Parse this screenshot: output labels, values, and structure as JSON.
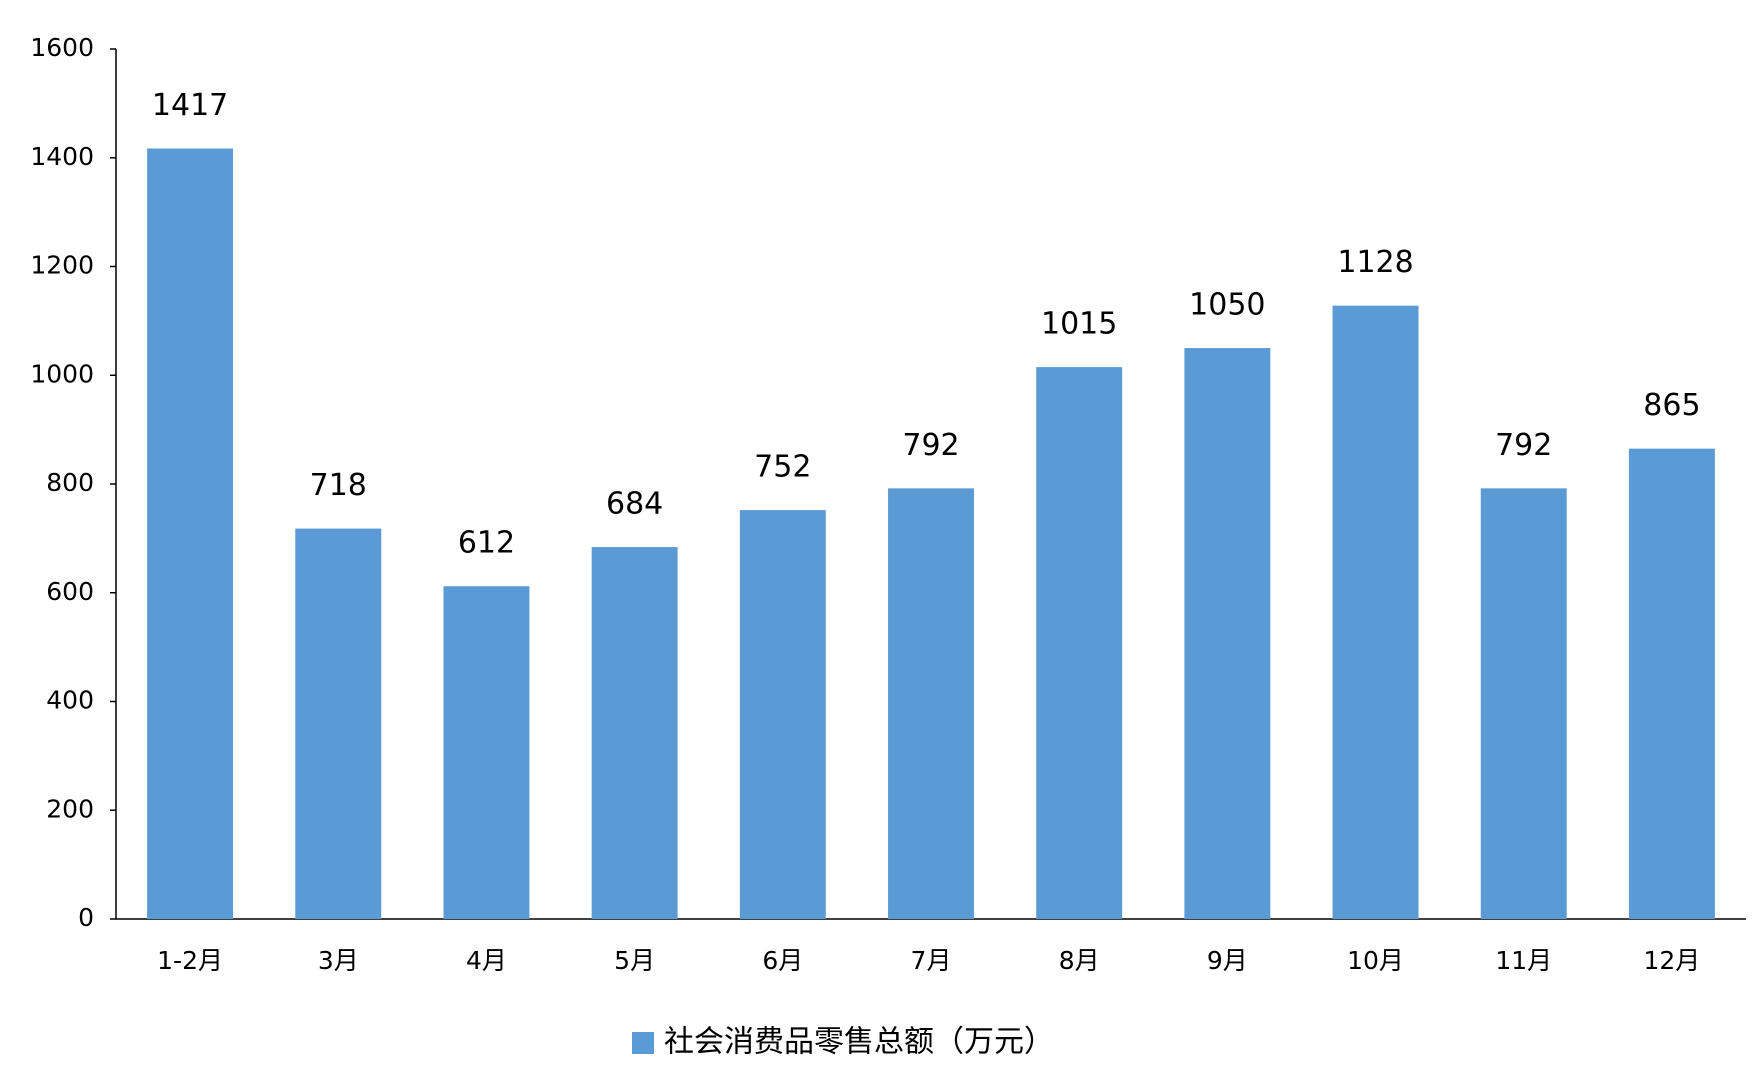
{
  "chart_data": {
    "type": "bar",
    "categories": [
      "1-2月",
      "3月",
      "4月",
      "5月",
      "6月",
      "7月",
      "8月",
      "9月",
      "10月",
      "11月",
      "12月"
    ],
    "series": [
      {
        "name": "社会消费品零售总额（万元）",
        "color": "#5b9bd5",
        "values": [
          1417,
          718,
          612,
          684,
          752,
          792,
          1015,
          1050,
          1128,
          792,
          865
        ]
      }
    ],
    "ylim": [
      0,
      1600
    ],
    "yticks": [
      0,
      200,
      400,
      600,
      800,
      1000,
      1200,
      1400,
      1600
    ],
    "grid": false,
    "legend": "bottom"
  }
}
